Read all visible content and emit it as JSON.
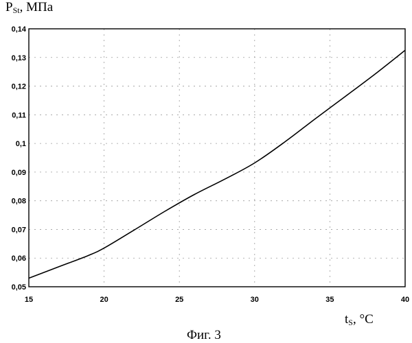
{
  "chart_data": {
    "type": "line",
    "title": "",
    "ylabel_main": "P",
    "ylabel_sub": "St",
    "ylabel_unit": ", МПа",
    "xlabel_main": "t",
    "xlabel_sub": "S",
    "xlabel_unit": ", °C",
    "xlim": [
      15,
      40
    ],
    "ylim": [
      0.05,
      0.14
    ],
    "x_ticks": [
      15,
      20,
      25,
      30,
      35,
      40
    ],
    "x_tick_labels": [
      "15",
      "20",
      "25",
      "30",
      "35",
      "40"
    ],
    "y_ticks": [
      0.05,
      0.06,
      0.07,
      0.08,
      0.09,
      0.1,
      0.11,
      0.12,
      0.13,
      0.14
    ],
    "y_tick_labels": [
      "0,05",
      "0,06",
      "0,07",
      "0,08",
      "0,09",
      "0,1",
      "0,11",
      "0,12",
      "0,13",
      "0,14"
    ],
    "grid": true,
    "series": [
      {
        "x": [
          15,
          17,
          19,
          20,
          22,
          24,
          26,
          28,
          30,
          32,
          34,
          36,
          38,
          40
        ],
        "y": [
          0.053,
          0.057,
          0.061,
          0.0635,
          0.0698,
          0.0762,
          0.0822,
          0.0875,
          0.0932,
          0.1005,
          0.1085,
          0.1163,
          0.1242,
          0.1325
        ]
      }
    ]
  },
  "caption": "Фиг. 3"
}
